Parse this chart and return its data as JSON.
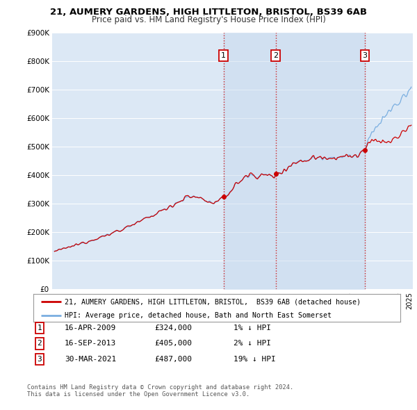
{
  "title1": "21, AUMERY GARDENS, HIGH LITTLETON, BRISTOL, BS39 6AB",
  "title2": "Price paid vs. HM Land Registry's House Price Index (HPI)",
  "background_color": "#ffffff",
  "plot_bg": "#dce8f5",
  "sale_dates_num": [
    2009.29,
    2013.71,
    2021.25
  ],
  "sale_prices": [
    324000,
    405000,
    487000
  ],
  "sale_labels": [
    "1",
    "2",
    "3"
  ],
  "legend_house": "21, AUMERY GARDENS, HIGH LITTLETON, BRISTOL,  BS39 6AB (detached house)",
  "legend_hpi": "HPI: Average price, detached house, Bath and North East Somerset",
  "footer1": "Contains HM Land Registry data © Crown copyright and database right 2024.",
  "footer2": "This data is licensed under the Open Government Licence v3.0.",
  "table": [
    [
      "1",
      "16-APR-2009",
      "£324,000",
      "1% ↓ HPI"
    ],
    [
      "2",
      "16-SEP-2013",
      "£405,000",
      "2% ↓ HPI"
    ],
    [
      "3",
      "30-MAR-2021",
      "£487,000",
      "19% ↓ HPI"
    ]
  ],
  "ylim": [
    0,
    900000
  ],
  "yticks": [
    0,
    100000,
    200000,
    300000,
    400000,
    500000,
    600000,
    700000,
    800000,
    900000
  ],
  "ytick_labels": [
    "£0",
    "£100K",
    "£200K",
    "£300K",
    "£400K",
    "£500K",
    "£600K",
    "£700K",
    "£800K",
    "£900K"
  ],
  "hpi_color": "#7aaee0",
  "price_color": "#cc0000",
  "vline_color": "#cc0000",
  "shade_color": "#c5d8ee",
  "grid_color": "#ffffff",
  "xlim_left": 1994.8,
  "xlim_right": 2025.3
}
